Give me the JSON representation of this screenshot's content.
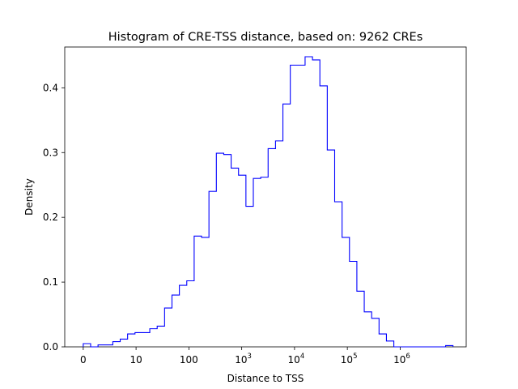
{
  "chart_data": {
    "type": "histogram",
    "title": "Histogram of CRE-TSS distance, based on: 9262 CREs",
    "xlabel": "Distance to TSS",
    "ylabel": "Density",
    "x_scale": "symlog",
    "xlim_decades": [
      -0.35,
      7.25
    ],
    "ylim": [
      0,
      0.463
    ],
    "grid": false,
    "line_color": "#0000ff",
    "x_ticks": [
      {
        "value": 0,
        "base": "0",
        "exp": ""
      },
      {
        "value": 10,
        "base": "10",
        "exp": ""
      },
      {
        "value": 100,
        "base": "100",
        "exp": ""
      },
      {
        "value": 1000,
        "base": "10",
        "exp": "3"
      },
      {
        "value": 10000,
        "base": "10",
        "exp": "4"
      },
      {
        "value": 100000,
        "base": "10",
        "exp": "5"
      },
      {
        "value": 1000000,
        "base": "10",
        "exp": "6"
      }
    ],
    "y_ticks": [
      "0.0",
      "0.1",
      "0.2",
      "0.3",
      "0.4"
    ],
    "bin_edges_decades": [
      0,
      0.14,
      0.28,
      0.42,
      0.56,
      0.7,
      0.84,
      0.98,
      1.12,
      1.26,
      1.4,
      1.54,
      1.68,
      1.82,
      1.96,
      2.1,
      2.24,
      2.38,
      2.52,
      2.66,
      2.8,
      2.94,
      3.08,
      3.22,
      3.36,
      3.5,
      3.64,
      3.78,
      3.92,
      4.06,
      4.2,
      4.34,
      4.48,
      4.62,
      4.76,
      4.9,
      5.04,
      5.18,
      5.32,
      5.46,
      5.6,
      5.74,
      5.88,
      6.02,
      6.16,
      6.3,
      6.44,
      6.58,
      6.72,
      6.86,
      7.0
    ],
    "densities": [
      0.005,
      0,
      0.003,
      0.003,
      0.008,
      0.012,
      0.02,
      0.022,
      0.022,
      0.028,
      0.032,
      0.06,
      0.08,
      0.095,
      0.102,
      0.171,
      0.169,
      0.24,
      0.299,
      0.297,
      0.276,
      0.265,
      0.217,
      0.26,
      0.262,
      0.306,
      0.318,
      0.375,
      0.435,
      0.435,
      0.448,
      0.443,
      0.403,
      0.304,
      0.224,
      0.169,
      0.132,
      0.086,
      0.054,
      0.044,
      0.02,
      0.009,
      0,
      0,
      0,
      0,
      0,
      0,
      0,
      0.002
    ]
  }
}
